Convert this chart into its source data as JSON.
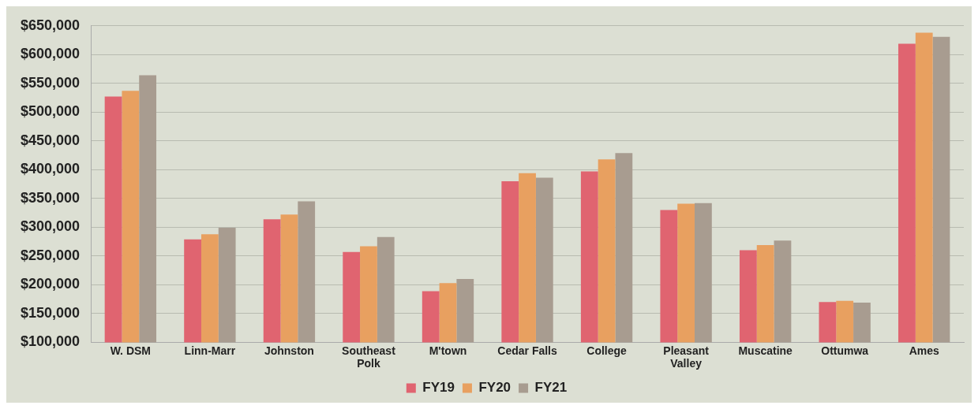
{
  "chart_data": {
    "type": "bar",
    "categories": [
      "W. DSM",
      "Linn-Marr",
      "Johnston",
      "Southeast Polk",
      "M'town",
      "Cedar Falls",
      "College",
      "Pleasant Valley",
      "Muscatine",
      "Ottumwa",
      "Ames"
    ],
    "series": [
      {
        "name": "FY19",
        "color": "#e06470",
        "values": [
          527000,
          279000,
          314000,
          257000,
          189000,
          380000,
          397000,
          330000,
          260000,
          170000,
          619000
        ]
      },
      {
        "name": "FY20",
        "color": "#e8a060",
        "values": [
          537000,
          288000,
          322000,
          267000,
          203000,
          394000,
          418000,
          341000,
          269000,
          172000,
          638000
        ]
      },
      {
        "name": "FY21",
        "color": "#a89c90",
        "values": [
          564000,
          299000,
          345000,
          283000,
          210000,
          386000,
          429000,
          342000,
          277000,
          169000,
          631000
        ]
      }
    ],
    "ylim": [
      100000,
      650000
    ],
    "yticks": [
      {
        "value": 100000,
        "label": "$100,000"
      },
      {
        "value": 150000,
        "label": "$150,000"
      },
      {
        "value": 200000,
        "label": "$200,000"
      },
      {
        "value": 250000,
        "label": "$250,000"
      },
      {
        "value": 300000,
        "label": "$300,000"
      },
      {
        "value": 350000,
        "label": "$350,000"
      },
      {
        "value": 400000,
        "label": "$400,000"
      },
      {
        "value": 450000,
        "label": "$450,000"
      },
      {
        "value": 500000,
        "label": "$500,000"
      },
      {
        "value": 550000,
        "label": "$550,000"
      },
      {
        "value": 600000,
        "label": "$600,000"
      },
      {
        "value": 650000,
        "label": "$650,000"
      }
    ],
    "grid": "y",
    "legend": "bottom"
  }
}
